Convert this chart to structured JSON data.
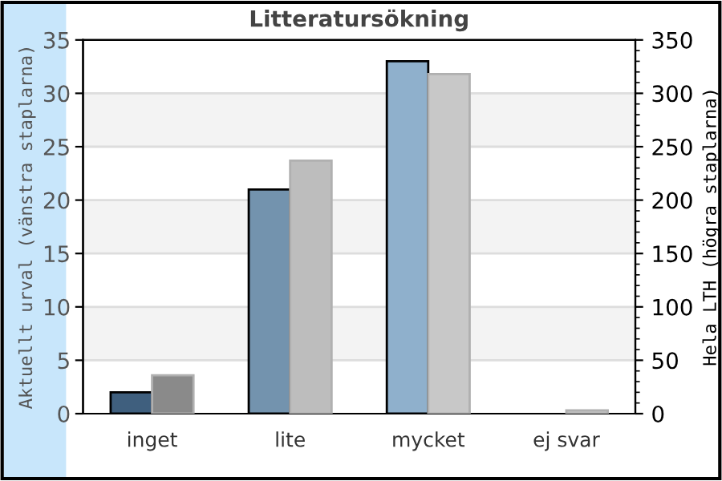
{
  "chart_data": {
    "type": "bar",
    "title": "Litteratursökning",
    "ylabel": "Aktuellt urval (vänstra staplarna)",
    "y2label": "Hela LTH (högra staplarna)",
    "categories": [
      "inget",
      "lite",
      "mycket",
      "ej svar"
    ],
    "series": [
      {
        "colors": [
          "#3f5f7e",
          "#7393ae",
          "#8fb0cc",
          null
        ],
        "values": [
          2,
          21,
          33,
          null
        ]
      },
      {
        "axis": "y2",
        "colors": [
          "#8a8a8a",
          "#bdbdbd",
          "#c8c8c8",
          "#c8c8c8"
        ],
        "values": [
          36,
          237,
          318,
          3
        ]
      }
    ],
    "ylim": [
      0,
      35
    ],
    "yticks": [
      0,
      5,
      10,
      15,
      20,
      25,
      30,
      35
    ],
    "y2lim": [
      0,
      350
    ],
    "y2ticks": [
      0,
      50,
      100,
      150,
      200,
      250,
      300,
      350
    ],
    "grid": "y",
    "legend": false
  }
}
